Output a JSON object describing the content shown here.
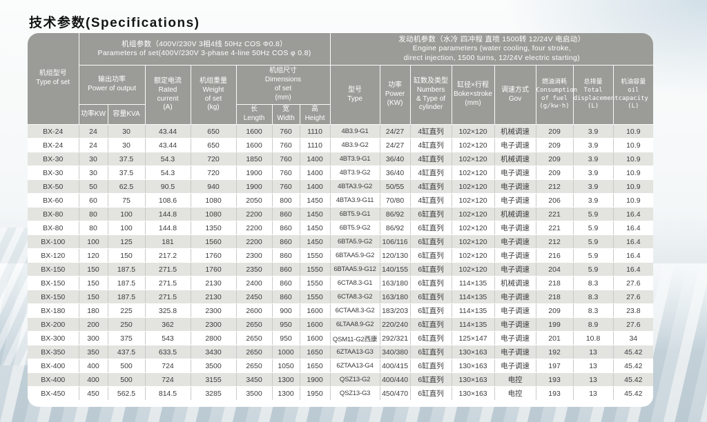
{
  "page_title": "技术参数(Specifications)",
  "colors": {
    "header_bg": "#9b9b97",
    "row_stripe": "#e3e3df",
    "row_white": "#ffffff",
    "header_text": "#ffffff",
    "body_text": "#3a3a3a",
    "water_background": "#c3ced5"
  },
  "table": {
    "group_headers": {
      "set_params": "机组参数（400V/230V 3相4线 50Hz COS Φ0.8）\nParameters of set(400V/230V 3-phase 4-line 50Hz COS φ 0.8)",
      "engine_params": "发动机参数（水冷 四冲程 直喷 1500转 12/24V 电启动）\nEngine parameters (water cooling, four stroke,\ndirect injection, 1500 turns, 12/24V electric starting)"
    },
    "headers": {
      "type_of_set": "机组型号\nType of set",
      "power_output": "输出功率\nPower of output",
      "power_kw": "功率KW",
      "capacity_kva": "容量KVA",
      "rated_current": "额定电流\nRated\ncurrent\n(A)",
      "weight": "机组重量\nWeight\nof set\n(kg)",
      "dimensions": "机组尺寸\nDimensions\nof set\n(mm)",
      "length": "长\nLength",
      "width": "宽\nWidth",
      "height": "高\nHeight",
      "engine_type": "型号\nType",
      "engine_power": "功率\nPower\n(KW)",
      "cylinder": "缸数及类型\nNumbers\n& Type of\ncylinder",
      "bore_stroke": "缸径×行程\nBoke×stroke\n(mm)",
      "governor": "调速方式\nGov",
      "fuel_consumption": "燃油消耗\nConsumption\nof fuel\n(g/kw·h)",
      "displacement": "总排量\nTotal\ndisplacement\n(L)",
      "oil_capacity": "机油容量\noil\ncapacity\n(L)"
    },
    "rows": [
      [
        "BX-24",
        "24",
        "30",
        "43.44",
        "650",
        "1600",
        "760",
        "1110",
        "4B3.9-G1",
        "24/27",
        "4缸直列",
        "102×120",
        "机械调速",
        "209",
        "3.9",
        "10.9"
      ],
      [
        "BX-24",
        "24",
        "30",
        "43.44",
        "650",
        "1600",
        "760",
        "1110",
        "4B3.9-G2",
        "24/27",
        "4缸直列",
        "102×120",
        "电子调速",
        "209",
        "3.9",
        "10.9"
      ],
      [
        "BX-30",
        "30",
        "37.5",
        "54.3",
        "720",
        "1850",
        "760",
        "1400",
        "4BT3.9-G1",
        "36/40",
        "4缸直列",
        "102×120",
        "机械调速",
        "209",
        "3.9",
        "10.9"
      ],
      [
        "BX-30",
        "30",
        "37.5",
        "54.3",
        "720",
        "1900",
        "760",
        "1400",
        "4BT3.9-G2",
        "36/40",
        "4缸直列",
        "102×120",
        "电子调速",
        "209",
        "3.9",
        "10.9"
      ],
      [
        "BX-50",
        "50",
        "62.5",
        "90.5",
        "940",
        "1900",
        "760",
        "1400",
        "4BTA3.9-G2",
        "50/55",
        "4缸直列",
        "102×120",
        "电子调速",
        "212",
        "3.9",
        "10.9"
      ],
      [
        "BX-60",
        "60",
        "75",
        "108.6",
        "1080",
        "2050",
        "800",
        "1450",
        "4BTA3.9-G11",
        "70/80",
        "4缸直列",
        "102×120",
        "电子调速",
        "206",
        "3.9",
        "10.9"
      ],
      [
        "BX-80",
        "80",
        "100",
        "144.8",
        "1080",
        "2200",
        "860",
        "1450",
        "6BT5.9-G1",
        "86/92",
        "6缸直列",
        "102×120",
        "机械调速",
        "221",
        "5.9",
        "16.4"
      ],
      [
        "BX-80",
        "80",
        "100",
        "144.8",
        "1350",
        "2200",
        "860",
        "1450",
        "6BT5.9-G2",
        "86/92",
        "6缸直列",
        "102×120",
        "电子调速",
        "221",
        "5.9",
        "16.4"
      ],
      [
        "BX-100",
        "100",
        "125",
        "181",
        "1560",
        "2200",
        "860",
        "1450",
        "6BTA5.9-G2",
        "106/116",
        "6缸直列",
        "102×120",
        "电子调速",
        "212",
        "5.9",
        "16.4"
      ],
      [
        "BX-120",
        "120",
        "150",
        "217.2",
        "1760",
        "2300",
        "860",
        "1550",
        "6BTAA5.9-G2",
        "120/130",
        "6缸直列",
        "102×120",
        "电子调速",
        "216",
        "5.9",
        "16.4"
      ],
      [
        "BX-150",
        "150",
        "187.5",
        "271.5",
        "1760",
        "2350",
        "860",
        "1550",
        "6BTAA5.9-G12",
        "140/155",
        "6缸直列",
        "102×120",
        "电子调速",
        "204",
        "5.9",
        "16.4"
      ],
      [
        "BX-150",
        "150",
        "187.5",
        "271.5",
        "2130",
        "2400",
        "860",
        "1550",
        "6CTA8.3-G1",
        "163/180",
        "6缸直列",
        "114×135",
        "机械调速",
        "218",
        "8.3",
        "27.6"
      ],
      [
        "BX-150",
        "150",
        "187.5",
        "271.5",
        "2130",
        "2450",
        "860",
        "1550",
        "6CTA8.3-G2",
        "163/180",
        "6缸直列",
        "114×135",
        "电子调速",
        "218",
        "8.3",
        "27.6"
      ],
      [
        "BX-180",
        "180",
        "225",
        "325.8",
        "2300",
        "2600",
        "900",
        "1600",
        "6CTAA8.3-G2",
        "183/203",
        "6缸直列",
        "114×135",
        "电子调速",
        "209",
        "8.3",
        "23.8"
      ],
      [
        "BX-200",
        "200",
        "250",
        "362",
        "2300",
        "2650",
        "950",
        "1600",
        "6LTAA8.9-G2",
        "220/240",
        "6缸直列",
        "114×135",
        "电子调速",
        "199",
        "8.9",
        "27.6"
      ],
      [
        "BX-300",
        "300",
        "375",
        "543",
        "2800",
        "2650",
        "950",
        "1600",
        "QSM11-G2西康",
        "292/321",
        "6缸直列",
        "125×147",
        "电子调速",
        "201",
        "10.8",
        "34"
      ],
      [
        "BX-350",
        "350",
        "437.5",
        "633.5",
        "3430",
        "2650",
        "1000",
        "1650",
        "6ZTAA13-G3",
        "340/380",
        "6缸直列",
        "130×163",
        "电子调速",
        "192",
        "13",
        "45.42"
      ],
      [
        "BX-400",
        "400",
        "500",
        "724",
        "3500",
        "2650",
        "1050",
        "1650",
        "6ZTAA13-G4",
        "400/415",
        "6缸直列",
        "130×163",
        "电子调速",
        "197",
        "13",
        "45.42"
      ],
      [
        "BX-400",
        "400",
        "500",
        "724",
        "3155",
        "3450",
        "1300",
        "1900",
        "QSZ13-G2",
        "400/440",
        "6缸直列",
        "130×163",
        "电控",
        "193",
        "13",
        "45.42"
      ],
      [
        "BX-450",
        "450",
        "562.5",
        "814.5",
        "3285",
        "3500",
        "1300",
        "1950",
        "QSZ13-G3",
        "450/470",
        "6缸直列",
        "130×163",
        "电控",
        "193",
        "13",
        "45.42"
      ]
    ]
  }
}
